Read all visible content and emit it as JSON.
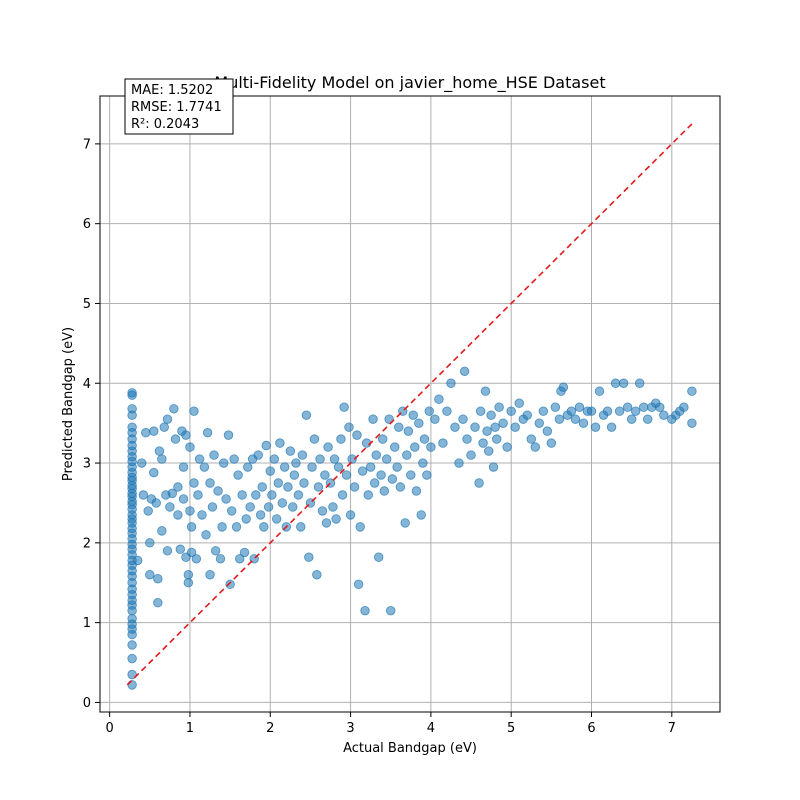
{
  "chart_data": {
    "type": "scatter",
    "title": "Multi-Fidelity Model on javier_home_HSE Dataset",
    "xlabel": "Actual Bandgap (eV)",
    "ylabel": "Predicted Bandgap (eV)",
    "xlim": [
      -0.12,
      7.6
    ],
    "ylim": [
      -0.12,
      7.6
    ],
    "xticks": [
      0,
      1,
      2,
      3,
      4,
      5,
      6,
      7
    ],
    "yticks": [
      0,
      1,
      2,
      3,
      4,
      5,
      6,
      7
    ],
    "grid": true,
    "stats": {
      "mae": "MAE: 1.5202",
      "rmse": "RMSE: 1.7741",
      "r2": "R²: 0.2043"
    },
    "colors": {
      "points": "#1f77b4",
      "diagonal": "#e3191c"
    },
    "diagonal": {
      "x": [
        0.22,
        7.25
      ],
      "y": [
        0.22,
        7.25
      ]
    },
    "series": [
      {
        "values": [
          [
            0.28,
            0.22
          ],
          [
            0.28,
            0.35
          ],
          [
            0.28,
            0.55
          ],
          [
            0.28,
            0.72
          ],
          [
            0.28,
            0.85
          ],
          [
            0.28,
            0.92
          ],
          [
            0.28,
            0.98
          ],
          [
            0.28,
            1.05
          ],
          [
            0.28,
            1.15
          ],
          [
            0.28,
            1.22
          ],
          [
            0.28,
            1.28
          ],
          [
            0.28,
            1.35
          ],
          [
            0.28,
            1.42
          ],
          [
            0.28,
            1.5
          ],
          [
            0.28,
            1.58
          ],
          [
            0.28,
            1.65
          ],
          [
            0.28,
            1.72
          ],
          [
            0.28,
            1.78
          ],
          [
            0.28,
            1.85
          ],
          [
            0.28,
            1.92
          ],
          [
            0.28,
            1.98
          ],
          [
            0.28,
            2.05
          ],
          [
            0.28,
            2.12
          ],
          [
            0.28,
            2.18
          ],
          [
            0.28,
            2.25
          ],
          [
            0.28,
            2.3
          ],
          [
            0.28,
            2.35
          ],
          [
            0.28,
            2.42
          ],
          [
            0.28,
            2.48
          ],
          [
            0.28,
            2.52
          ],
          [
            0.28,
            2.58
          ],
          [
            0.28,
            2.62
          ],
          [
            0.28,
            2.68
          ],
          [
            0.28,
            2.72
          ],
          [
            0.28,
            2.78
          ],
          [
            0.28,
            2.82
          ],
          [
            0.28,
            2.88
          ],
          [
            0.28,
            2.95
          ],
          [
            0.28,
            3.02
          ],
          [
            0.28,
            3.08
          ],
          [
            0.28,
            3.15
          ],
          [
            0.28,
            3.22
          ],
          [
            0.28,
            3.3
          ],
          [
            0.28,
            3.38
          ],
          [
            0.28,
            3.45
          ],
          [
            0.28,
            3.6
          ],
          [
            0.28,
            3.68
          ],
          [
            0.28,
            3.85
          ],
          [
            0.28,
            3.88
          ],
          [
            0.35,
            1.78
          ],
          [
            0.4,
            3.0
          ],
          [
            0.42,
            2.6
          ],
          [
            0.45,
            3.38
          ],
          [
            0.48,
            2.4
          ],
          [
            0.5,
            1.6
          ],
          [
            0.5,
            2.0
          ],
          [
            0.52,
            2.55
          ],
          [
            0.55,
            2.88
          ],
          [
            0.55,
            3.4
          ],
          [
            0.58,
            2.5
          ],
          [
            0.6,
            1.25
          ],
          [
            0.6,
            1.55
          ],
          [
            0.62,
            3.15
          ],
          [
            0.65,
            2.15
          ],
          [
            0.65,
            3.05
          ],
          [
            0.68,
            3.45
          ],
          [
            0.7,
            2.6
          ],
          [
            0.72,
            1.9
          ],
          [
            0.72,
            3.55
          ],
          [
            0.75,
            2.45
          ],
          [
            0.78,
            2.62
          ],
          [
            0.8,
            3.68
          ],
          [
            0.82,
            3.3
          ],
          [
            0.85,
            2.35
          ],
          [
            0.85,
            2.7
          ],
          [
            0.88,
            1.92
          ],
          [
            0.9,
            3.4
          ],
          [
            0.92,
            2.95
          ],
          [
            0.92,
            2.55
          ],
          [
            0.95,
            1.82
          ],
          [
            0.95,
            3.35
          ],
          [
            0.98,
            1.5
          ],
          [
            0.98,
            1.6
          ],
          [
            1.0,
            2.4
          ],
          [
            1.0,
            3.2
          ],
          [
            1.02,
            1.88
          ],
          [
            1.02,
            2.2
          ],
          [
            1.05,
            3.65
          ],
          [
            1.05,
            2.75
          ],
          [
            1.08,
            1.8
          ],
          [
            1.1,
            2.6
          ],
          [
            1.12,
            3.05
          ],
          [
            1.15,
            2.35
          ],
          [
            1.18,
            2.95
          ],
          [
            1.2,
            2.1
          ],
          [
            1.22,
            3.38
          ],
          [
            1.25,
            1.6
          ],
          [
            1.25,
            2.75
          ],
          [
            1.28,
            2.45
          ],
          [
            1.3,
            3.1
          ],
          [
            1.32,
            1.9
          ],
          [
            1.35,
            2.65
          ],
          [
            1.38,
            1.8
          ],
          [
            1.4,
            2.2
          ],
          [
            1.42,
            3.0
          ],
          [
            1.45,
            2.55
          ],
          [
            1.48,
            3.35
          ],
          [
            1.5,
            1.48
          ],
          [
            1.52,
            2.4
          ],
          [
            1.55,
            3.05
          ],
          [
            1.58,
            2.2
          ],
          [
            1.6,
            2.85
          ],
          [
            1.62,
            1.8
          ],
          [
            1.65,
            2.6
          ],
          [
            1.68,
            1.88
          ],
          [
            1.7,
            2.3
          ],
          [
            1.72,
            2.95
          ],
          [
            1.75,
            2.45
          ],
          [
            1.78,
            3.05
          ],
          [
            1.8,
            1.8
          ],
          [
            1.82,
            2.6
          ],
          [
            1.85,
            3.1
          ],
          [
            1.88,
            2.35
          ],
          [
            1.9,
            2.7
          ],
          [
            1.92,
            2.2
          ],
          [
            1.95,
            3.22
          ],
          [
            1.98,
            2.45
          ],
          [
            2.0,
            2.9
          ],
          [
            2.02,
            2.6
          ],
          [
            2.05,
            3.05
          ],
          [
            2.08,
            2.3
          ],
          [
            2.1,
            2.75
          ],
          [
            2.12,
            3.25
          ],
          [
            2.15,
            2.5
          ],
          [
            2.18,
            2.95
          ],
          [
            2.2,
            2.2
          ],
          [
            2.22,
            2.7
          ],
          [
            2.25,
            3.15
          ],
          [
            2.28,
            2.45
          ],
          [
            2.3,
            2.85
          ],
          [
            2.32,
            3.0
          ],
          [
            2.35,
            2.6
          ],
          [
            2.38,
            2.2
          ],
          [
            2.4,
            3.1
          ],
          [
            2.42,
            2.75
          ],
          [
            2.45,
            3.6
          ],
          [
            2.48,
            1.82
          ],
          [
            2.5,
            2.5
          ],
          [
            2.52,
            2.95
          ],
          [
            2.55,
            3.3
          ],
          [
            2.58,
            1.6
          ],
          [
            2.6,
            2.7
          ],
          [
            2.62,
            3.05
          ],
          [
            2.65,
            2.4
          ],
          [
            2.68,
            2.85
          ],
          [
            2.7,
            2.25
          ],
          [
            2.72,
            3.2
          ],
          [
            2.75,
            2.75
          ],
          [
            2.78,
            2.45
          ],
          [
            2.8,
            3.05
          ],
          [
            2.82,
            2.3
          ],
          [
            2.85,
            2.95
          ],
          [
            2.88,
            3.3
          ],
          [
            2.9,
            2.6
          ],
          [
            2.92,
            3.7
          ],
          [
            2.95,
            2.85
          ],
          [
            2.98,
            3.45
          ],
          [
            3.0,
            2.35
          ],
          [
            3.02,
            3.05
          ],
          [
            3.05,
            2.7
          ],
          [
            3.08,
            3.35
          ],
          [
            3.1,
            1.48
          ],
          [
            3.12,
            2.2
          ],
          [
            3.15,
            2.9
          ],
          [
            3.18,
            1.15
          ],
          [
            3.2,
            3.25
          ],
          [
            3.22,
            2.6
          ],
          [
            3.25,
            2.95
          ],
          [
            3.28,
            3.55
          ],
          [
            3.3,
            2.75
          ],
          [
            3.32,
            3.1
          ],
          [
            3.35,
            1.82
          ],
          [
            3.38,
            2.85
          ],
          [
            3.4,
            3.3
          ],
          [
            3.42,
            2.65
          ],
          [
            3.45,
            3.05
          ],
          [
            3.48,
            3.55
          ],
          [
            3.5,
            1.15
          ],
          [
            3.52,
            2.8
          ],
          [
            3.55,
            3.2
          ],
          [
            3.58,
            2.95
          ],
          [
            3.6,
            3.45
          ],
          [
            3.62,
            2.7
          ],
          [
            3.65,
            3.65
          ],
          [
            3.68,
            2.25
          ],
          [
            3.7,
            3.1
          ],
          [
            3.72,
            3.4
          ],
          [
            3.75,
            2.85
          ],
          [
            3.78,
            3.6
          ],
          [
            3.8,
            3.2
          ],
          [
            3.82,
            2.65
          ],
          [
            3.85,
            3.5
          ],
          [
            3.88,
            2.35
          ],
          [
            3.9,
            3.0
          ],
          [
            3.92,
            3.3
          ],
          [
            3.95,
            2.85
          ],
          [
            3.98,
            3.65
          ],
          [
            4.0,
            3.2
          ],
          [
            4.05,
            3.55
          ],
          [
            4.1,
            3.8
          ],
          [
            4.15,
            3.25
          ],
          [
            4.2,
            3.65
          ],
          [
            4.25,
            4.0
          ],
          [
            4.3,
            3.45
          ],
          [
            4.35,
            3.0
          ],
          [
            4.4,
            3.55
          ],
          [
            4.42,
            4.15
          ],
          [
            4.45,
            3.3
          ],
          [
            4.5,
            3.1
          ],
          [
            4.55,
            3.45
          ],
          [
            4.6,
            2.75
          ],
          [
            4.62,
            3.65
          ],
          [
            4.65,
            3.25
          ],
          [
            4.68,
            3.9
          ],
          [
            4.7,
            3.4
          ],
          [
            4.72,
            3.15
          ],
          [
            4.75,
            3.6
          ],
          [
            4.78,
            2.95
          ],
          [
            4.8,
            3.45
          ],
          [
            4.82,
            3.3
          ],
          [
            4.85,
            3.7
          ],
          [
            4.9,
            3.5
          ],
          [
            4.95,
            3.2
          ],
          [
            5.0,
            3.65
          ],
          [
            5.05,
            3.45
          ],
          [
            5.1,
            3.75
          ],
          [
            5.15,
            3.55
          ],
          [
            5.2,
            3.6
          ],
          [
            5.25,
            3.3
          ],
          [
            5.3,
            3.2
          ],
          [
            5.35,
            3.5
          ],
          [
            5.4,
            3.65
          ],
          [
            5.45,
            3.4
          ],
          [
            5.5,
            3.25
          ],
          [
            5.55,
            3.7
          ],
          [
            5.6,
            3.55
          ],
          [
            5.62,
            3.9
          ],
          [
            5.65,
            3.95
          ],
          [
            5.7,
            3.6
          ],
          [
            5.75,
            3.65
          ],
          [
            5.8,
            3.55
          ],
          [
            5.85,
            3.7
          ],
          [
            5.9,
            3.5
          ],
          [
            5.95,
            3.65
          ],
          [
            6.0,
            3.65
          ],
          [
            6.05,
            3.45
          ],
          [
            6.1,
            3.9
          ],
          [
            6.15,
            3.6
          ],
          [
            6.2,
            3.65
          ],
          [
            6.25,
            3.45
          ],
          [
            6.3,
            4.0
          ],
          [
            6.35,
            3.65
          ],
          [
            6.4,
            4.0
          ],
          [
            6.45,
            3.7
          ],
          [
            6.5,
            3.55
          ],
          [
            6.55,
            3.65
          ],
          [
            6.6,
            4.0
          ],
          [
            6.65,
            3.7
          ],
          [
            6.7,
            3.55
          ],
          [
            6.75,
            3.7
          ],
          [
            6.8,
            3.75
          ],
          [
            6.85,
            3.7
          ],
          [
            6.9,
            3.6
          ],
          [
            7.0,
            3.55
          ],
          [
            7.05,
            3.6
          ],
          [
            7.1,
            3.65
          ],
          [
            7.15,
            3.7
          ],
          [
            7.25,
            3.9
          ],
          [
            7.25,
            3.5
          ]
        ]
      }
    ]
  }
}
